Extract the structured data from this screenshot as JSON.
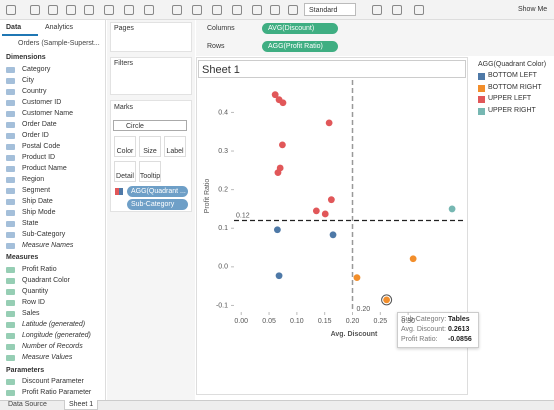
{
  "toolbar": {
    "preset": "Standard",
    "show_me": "Show Me"
  },
  "data_pane": {
    "tabs": [
      "Data",
      "Analytics"
    ],
    "source": "Orders (Sample-Superst...",
    "dimensions_header": "Dimensions",
    "dimensions": [
      "Category",
      "City",
      "Country",
      "Customer ID",
      "Customer Name",
      "Order Date",
      "Order ID",
      "Postal Code",
      "Product ID",
      "Product Name",
      "Region",
      "Segment",
      "Ship Date",
      "Ship Mode",
      "State",
      "Sub-Category",
      "Measure Names"
    ],
    "measures_header": "Measures",
    "measures": [
      "Profit Ratio",
      "Quadrant Color",
      "Quantity",
      "Row ID",
      "Sales",
      "Latitude (generated)",
      "Longitude (generated)",
      "Number of Records",
      "Measure Values"
    ],
    "parameters_header": "Parameters",
    "parameters": [
      "Discount Parameter",
      "Profit Ratio Parameter"
    ]
  },
  "cards": {
    "pages": "Pages",
    "filters": "Filters",
    "marks": "Marks",
    "mark_type": "Circle",
    "buttons": [
      "Color",
      "Size",
      "Label",
      "Detail",
      "Tooltip"
    ],
    "pills": [
      "AGG(Quadrant ...",
      "Sub-Category"
    ]
  },
  "shelves": {
    "columns_label": "Columns",
    "columns_pill": "AVG(Discount)",
    "rows_label": "Rows",
    "rows_pill": "AGG(Profit Ratio)"
  },
  "chart_data": {
    "type": "scatter",
    "title": "Sheet 1",
    "x_label": "Avg. Discount",
    "y_label": "Profit Ratio",
    "legend_title": "AGG(Quadrant Color)",
    "legend": "right",
    "grid": false,
    "xlim": [
      -0.013,
      0.404
    ],
    "ylim": [
      -0.117,
      0.484
    ],
    "xticks": [
      {
        "value": 0,
        "label": "0.00"
      },
      {
        "value": 0.05,
        "label": "0.05"
      },
      {
        "value": 0.1,
        "label": "0.10"
      },
      {
        "value": 0.15,
        "label": "0.15"
      },
      {
        "value": 0.2,
        "label": "0.20"
      },
      {
        "value": 0.25,
        "label": "0.25"
      },
      {
        "value": 0.3,
        "label": "0.30"
      }
    ],
    "yticks": [
      {
        "value": -0.1,
        "label": "-0.1"
      },
      {
        "value": 0,
        "label": "0.0"
      },
      0.1,
      0.2,
      0.3,
      0.4
    ],
    "reference_lines": [
      {
        "axis": "x",
        "value": 0.2,
        "label": "0.20"
      },
      {
        "axis": "y",
        "value": 0.12,
        "label": "0.12"
      }
    ],
    "series": [
      {
        "name": "BOTTOM LEFT",
        "color": "#4e79a7",
        "x": [
          0.065,
          0.165,
          0.068
        ],
        "y": [
          0.096,
          0.083,
          -0.023
        ]
      },
      {
        "name": "BOTTOM RIGHT",
        "color": "#f28e2b",
        "x": [
          0.309,
          0.208,
          0.2613
        ],
        "y": [
          0.021,
          -0.028,
          -0.0856
        ]
      },
      {
        "name": "UPPER LEFT",
        "color": "#e15759",
        "x": [
          0.061,
          0.068,
          0.075,
          0.158,
          0.074,
          0.07,
          0.066,
          0.162,
          0.135,
          0.151
        ],
        "y": [
          0.446,
          0.433,
          0.425,
          0.373,
          0.316,
          0.256,
          0.244,
          0.174,
          0.145,
          0.137
        ]
      },
      {
        "name": "UPPER RIGHT",
        "color": "#76b7b2",
        "x": [
          0.379
        ],
        "y": [
          0.15
        ]
      }
    ]
  },
  "tooltip": {
    "rows": [
      [
        "Sub-Category:",
        "Tables"
      ],
      [
        "Avg. Discount:",
        "0.2613"
      ],
      [
        "Profit Ratio:",
        "-0.0856"
      ]
    ]
  },
  "sheet_tabs": [
    "Data Source",
    "Sheet 1"
  ]
}
